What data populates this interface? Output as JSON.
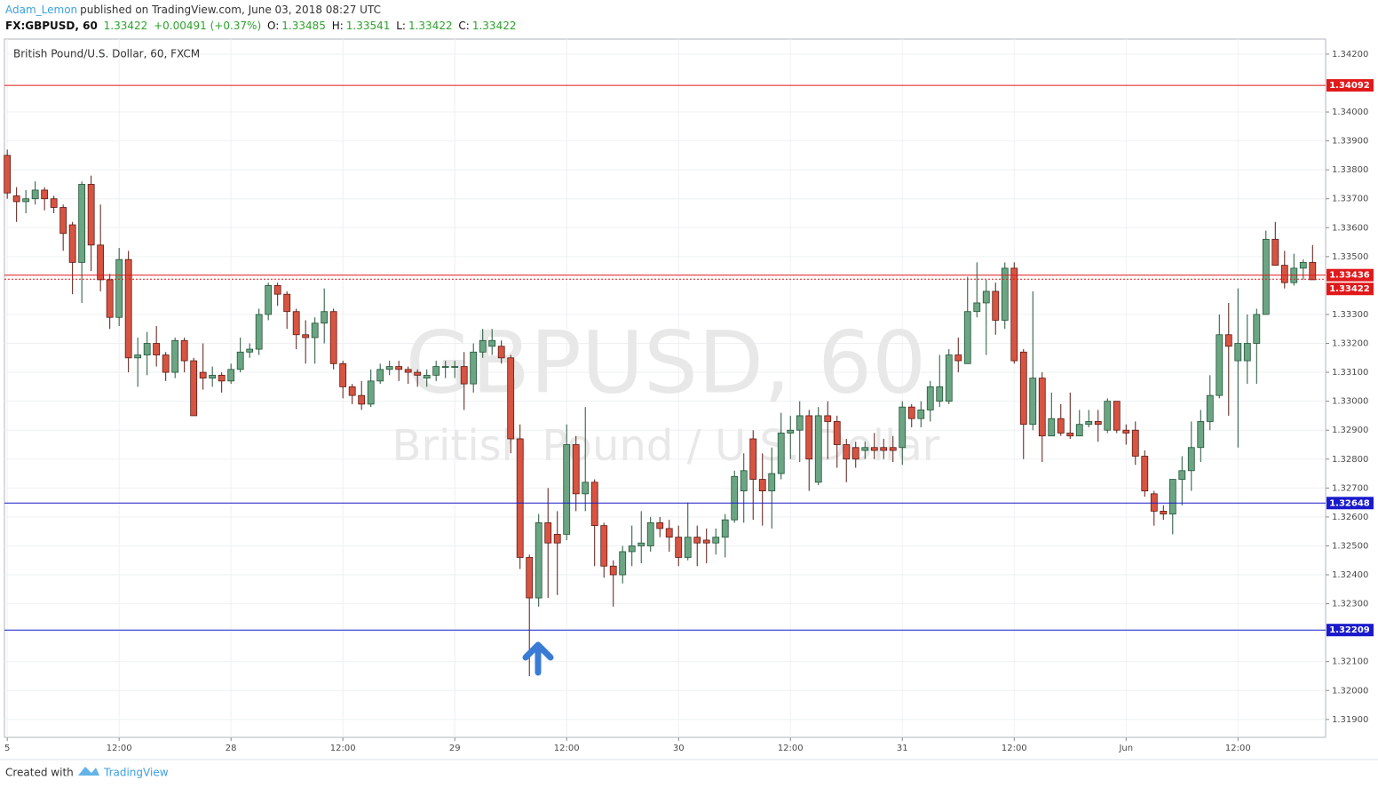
{
  "header": {
    "author": "Adam_Lemon",
    "published": "published on TradingView.com, June 03, 2018 08:27 UTC",
    "symbol": "FX:GBPUSD, 60",
    "last": "1.33422",
    "change": "+0.00491 (+0.37%)",
    "o_label": "O:",
    "o": "1.33485",
    "h_label": "H:",
    "h": "1.33541",
    "l_label": "L:",
    "l": "1.33422",
    "c_label": "C:",
    "c": "1.33422"
  },
  "footer": {
    "created_with": "Created with",
    "brand": "TradingView"
  },
  "chart_data": {
    "type": "candlestick",
    "title": "British Pound/U.S. Dollar, 60, FXCM",
    "watermark": "GBPUSD, 60",
    "watermark_subtitle": "British Pound / U.S. Dollar",
    "up_color": "#6ba583",
    "down_color": "#d75442",
    "grid": true,
    "xlim": [
      -0.3,
      141.4
    ],
    "ylim": [
      1.31838,
      1.34252
    ],
    "xticks": [
      {
        "value": 0,
        "label": "5"
      },
      {
        "value": 12,
        "label": "12:00"
      },
      {
        "value": 24,
        "label": "28"
      },
      {
        "value": 36,
        "label": "12:00"
      },
      {
        "value": 48,
        "label": "29"
      },
      {
        "value": 60,
        "label": "12:00"
      },
      {
        "value": 72,
        "label": "30"
      },
      {
        "value": 84,
        "label": "12:00"
      },
      {
        "value": 96,
        "label": "31"
      },
      {
        "value": 108,
        "label": "12:00"
      },
      {
        "value": 120,
        "label": "Jun"
      },
      {
        "value": 132,
        "label": "12:00"
      }
    ],
    "yticks": [
      {
        "value": 1.319,
        "label": "1.31900"
      },
      {
        "value": 1.32,
        "label": "1.32000"
      },
      {
        "value": 1.321,
        "label": "1.32100"
      },
      {
        "value": 1.323,
        "label": "1.32300"
      },
      {
        "value": 1.324,
        "label": "1.32400"
      },
      {
        "value": 1.325,
        "label": "1.32500"
      },
      {
        "value": 1.326,
        "label": "1.32600"
      },
      {
        "value": 1.327,
        "label": "1.32700"
      },
      {
        "value": 1.328,
        "label": "1.32800"
      },
      {
        "value": 1.329,
        "label": "1.32900"
      },
      {
        "value": 1.33,
        "label": "1.33000"
      },
      {
        "value": 1.331,
        "label": "1.33100"
      },
      {
        "value": 1.332,
        "label": "1.33200"
      },
      {
        "value": 1.333,
        "label": "1.33300"
      },
      {
        "value": 1.335,
        "label": "1.33500"
      },
      {
        "value": 1.336,
        "label": "1.33600"
      },
      {
        "value": 1.337,
        "label": "1.33700"
      },
      {
        "value": 1.338,
        "label": "1.33800"
      },
      {
        "value": 1.339,
        "label": "1.33900"
      },
      {
        "value": 1.34,
        "label": "1.34000"
      },
      {
        "value": 1.342,
        "label": "1.34200"
      }
    ],
    "levels": [
      {
        "value": 1.34092,
        "color": "#e0191b",
        "style": "solid"
      },
      {
        "value": 1.33436,
        "color": "#e0191b",
        "style": "solid"
      },
      {
        "value": 1.33422,
        "color": "#e0191b",
        "style": "dotted"
      },
      {
        "value": 1.32648,
        "color": "#1a1acc",
        "style": "solid"
      },
      {
        "value": 1.32209,
        "color": "#1a1acc",
        "style": "solid"
      }
    ],
    "open": [
      1.3385,
      1.3371,
      1.3369,
      1.337,
      1.3373,
      1.337,
      1.3367,
      1.3361,
      1.3348,
      1.3375,
      1.3354,
      1.3342,
      1.3329,
      1.3349,
      1.3315,
      1.3316,
      1.332,
      1.3316,
      1.331,
      1.3321,
      1.3314,
      1.331,
      1.3308,
      1.3309,
      1.3307,
      1.3311,
      1.3317,
      1.3318,
      1.333,
      1.334,
      1.3337,
      1.3331,
      1.3323,
      1.3322,
      1.3327,
      1.3331,
      1.3313,
      1.3305,
      1.3302,
      1.3299,
      1.3307,
      1.3311,
      1.3312,
      1.3311,
      1.331,
      1.3308,
      1.3309,
      1.3312,
      1.3312,
      1.3312,
      1.3306,
      1.3317,
      1.3319,
      1.3319,
      1.3315,
      1.3287,
      1.3246,
      1.3232,
      1.3258,
      1.3254,
      1.3254,
      1.3285,
      1.3268,
      1.3272,
      1.3257,
      1.3243,
      1.324,
      1.3248,
      1.325,
      1.325,
      1.3258,
      1.3256,
      1.3253,
      1.3246,
      1.3253,
      1.3252,
      1.3251,
      1.3253,
      1.3259,
      1.3269,
      1.3287,
      1.3273,
      1.3269,
      1.3275,
      1.3289,
      1.329,
      1.3295,
      1.3272,
      1.3295,
      1.3293,
      1.3285,
      1.3284,
      1.3283,
      1.3284,
      1.3284,
      1.3284,
      1.3284,
      1.3298,
      1.3294,
      1.3297,
      1.33,
      1.33,
      1.3316,
      1.3313,
      1.3331,
      1.3334,
      1.3338,
      1.3328,
      1.3346,
      1.3317,
      1.3292,
      1.3308,
      1.3288,
      1.3294,
      1.3289,
      1.3288,
      1.3292,
      1.3293,
      1.329,
      1.33,
      1.329,
      1.329,
      1.3281,
      1.3268,
      1.3262,
      1.3261,
      1.3273,
      1.3276,
      1.3284,
      1.3293,
      1.3302,
      1.3323,
      1.3314,
      1.3314,
      1.332,
      1.333,
      1.3356,
      1.3347,
      1.3341,
      1.3346,
      1.3348
    ],
    "high": [
      1.3387,
      1.3374,
      1.3373,
      1.3376,
      1.3374,
      1.3371,
      1.3368,
      1.3362,
      1.3376,
      1.3378,
      1.3368,
      1.3344,
      1.3353,
      1.3352,
      1.3322,
      1.3324,
      1.3326,
      1.3317,
      1.3322,
      1.3322,
      1.3315,
      1.332,
      1.3312,
      1.331,
      1.3313,
      1.3322,
      1.332,
      1.3332,
      1.3341,
      1.3341,
      1.3338,
      1.3332,
      1.3328,
      1.3329,
      1.3339,
      1.3332,
      1.3314,
      1.3306,
      1.3307,
      1.3311,
      1.3313,
      1.3314,
      1.3314,
      1.3312,
      1.3311,
      1.3311,
      1.3314,
      1.3314,
      1.3314,
      1.3317,
      1.332,
      1.3325,
      1.3325,
      1.3321,
      1.3316,
      1.3292,
      1.3247,
      1.3261,
      1.327,
      1.3262,
      1.3292,
      1.3288,
      1.3298,
      1.3273,
      1.3258,
      1.3245,
      1.325,
      1.3257,
      1.3262,
      1.326,
      1.326,
      1.3259,
      1.3257,
      1.3265,
      1.3257,
      1.3256,
      1.3256,
      1.3261,
      1.3276,
      1.3282,
      1.329,
      1.3282,
      1.3284,
      1.3296,
      1.3295,
      1.33,
      1.3297,
      1.3298,
      1.33,
      1.3295,
      1.3287,
      1.3286,
      1.3286,
      1.3289,
      1.3287,
      1.3288,
      1.33,
      1.3299,
      1.33,
      1.3307,
      1.3316,
      1.3318,
      1.3322,
      1.3343,
      1.3348,
      1.3342,
      1.3341,
      1.3348,
      1.3348,
      1.3318,
      1.3338,
      1.331,
      1.3303,
      1.3299,
      1.3303,
      1.3297,
      1.3297,
      1.3297,
      1.3301,
      1.33,
      1.3292,
      1.3293,
      1.3283,
      1.3269,
      1.3264,
      1.3273,
      1.3281,
      1.3293,
      1.3297,
      1.3309,
      1.333,
      1.3334,
      1.3339,
      1.333,
      1.3332,
      1.3359,
      1.3362,
      1.3352,
      1.3351,
      1.3349,
      1.3354
    ],
    "low": [
      1.337,
      1.3362,
      1.3365,
      1.3368,
      1.3366,
      1.3365,
      1.3352,
      1.3337,
      1.3334,
      1.3345,
      1.3338,
      1.3325,
      1.3326,
      1.331,
      1.3305,
      1.3309,
      1.3312,
      1.3307,
      1.3308,
      1.331,
      1.3295,
      1.3304,
      1.3305,
      1.3303,
      1.3306,
      1.331,
      1.3315,
      1.3316,
      1.3328,
      1.3333,
      1.3325,
      1.3318,
      1.3313,
      1.3313,
      1.332,
      1.3311,
      1.3301,
      1.3299,
      1.3297,
      1.3298,
      1.3306,
      1.3309,
      1.3307,
      1.3306,
      1.3305,
      1.3305,
      1.3307,
      1.3308,
      1.3308,
      1.3297,
      1.3303,
      1.3315,
      1.3316,
      1.3313,
      1.3282,
      1.3242,
      1.3205,
      1.3229,
      1.3232,
      1.3233,
      1.3252,
      1.3262,
      1.3262,
      1.3243,
      1.3239,
      1.3229,
      1.3237,
      1.3243,
      1.3244,
      1.3248,
      1.3253,
      1.3248,
      1.3243,
      1.3245,
      1.3243,
      1.3244,
      1.3247,
      1.3246,
      1.3258,
      1.3258,
      1.3259,
      1.3257,
      1.3256,
      1.3273,
      1.328,
      1.3279,
      1.3269,
      1.3271,
      1.328,
      1.3277,
      1.3272,
      1.3277,
      1.328,
      1.328,
      1.328,
      1.3279,
      1.3278,
      1.3291,
      1.3291,
      1.3293,
      1.3298,
      1.3299,
      1.331,
      1.3313,
      1.3329,
      1.3316,
      1.3323,
      1.3325,
      1.3313,
      1.328,
      1.329,
      1.3279,
      1.3288,
      1.3288,
      1.3287,
      1.3288,
      1.3291,
      1.3286,
      1.3289,
      1.3289,
      1.3285,
      1.3278,
      1.3267,
      1.3257,
      1.3259,
      1.3254,
      1.3264,
      1.3269,
      1.3279,
      1.329,
      1.3301,
      1.3295,
      1.3284,
      1.3306,
      1.3306,
      1.333,
      1.3347,
      1.3339,
      1.334,
      1.3342,
      1.3342
    ],
    "close": [
      1.3372,
      1.3369,
      1.337,
      1.3373,
      1.337,
      1.3367,
      1.3358,
      1.3348,
      1.3375,
      1.3354,
      1.3342,
      1.3329,
      1.3349,
      1.3315,
      1.3316,
      1.332,
      1.3316,
      1.331,
      1.3321,
      1.3314,
      1.3295,
      1.3308,
      1.3309,
      1.3307,
      1.3311,
      1.3317,
      1.3318,
      1.333,
      1.334,
      1.3337,
      1.3331,
      1.3323,
      1.3322,
      1.3327,
      1.3331,
      1.3313,
      1.3305,
      1.3302,
      1.3299,
      1.3307,
      1.3311,
      1.3312,
      1.3311,
      1.331,
      1.3309,
      1.3309,
      1.3312,
      1.3312,
      1.3312,
      1.3306,
      1.3317,
      1.3321,
      1.3321,
      1.3315,
      1.3287,
      1.3246,
      1.3232,
      1.3258,
      1.3251,
      1.3251,
      1.3285,
      1.3268,
      1.3272,
      1.3257,
      1.3243,
      1.324,
      1.3248,
      1.325,
      1.3251,
      1.3258,
      1.3256,
      1.3253,
      1.3246,
      1.3253,
      1.3251,
      1.3251,
      1.3253,
      1.3259,
      1.3274,
      1.3276,
      1.3273,
      1.3269,
      1.3275,
      1.3289,
      1.329,
      1.3295,
      1.328,
      1.3295,
      1.3293,
      1.3285,
      1.328,
      1.328,
      1.3284,
      1.3283,
      1.3283,
      1.3283,
      1.3298,
      1.3294,
      1.3297,
      1.3305,
      1.3305,
      1.3316,
      1.3314,
      1.3331,
      1.3334,
      1.3338,
      1.3328,
      1.3346,
      1.3314,
      1.3292,
      1.3308,
      1.3288,
      1.3294,
      1.3289,
      1.3288,
      1.3292,
      1.3293,
      1.3292,
      1.33,
      1.329,
      1.3289,
      1.3281,
      1.3269,
      1.3262,
      1.3261,
      1.3273,
      1.3276,
      1.3284,
      1.3293,
      1.3302,
      1.3323,
      1.3319,
      1.332,
      1.332,
      1.333,
      1.3356,
      1.3347,
      1.3341,
      1.3346,
      1.3348,
      1.3342
    ]
  }
}
